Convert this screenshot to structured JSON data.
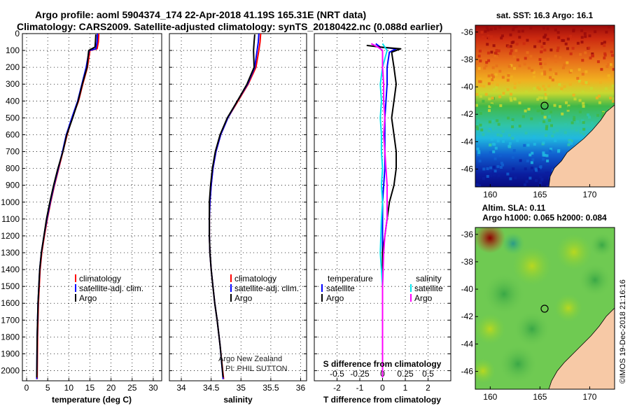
{
  "header": {
    "line1": "Argo profile: aoml 5904374_174 22-Apr-2018 41.19S 165.31E (NRT data)",
    "line2": "Climatology: CARS2009. Satellite-adjusted climatology: synTS_20180422.nc (0.088d earlier)"
  },
  "colors": {
    "climatology": "#ff0000",
    "satellite": "#0000ff",
    "argo": "#000000",
    "s_satellite": "#00e5ee",
    "s_argo": "#ff00ff"
  },
  "chart_data": [
    {
      "type": "line",
      "name": "temperature-profile",
      "xlabel": "temperature (deg C)",
      "xlim": [
        -1,
        32
      ],
      "ylim": [
        2060,
        0
      ],
      "xticks": [
        0,
        5,
        10,
        15,
        20,
        25,
        30
      ],
      "yticks": [
        0,
        100,
        200,
        300,
        400,
        500,
        600,
        700,
        800,
        900,
        1000,
        1100,
        1200,
        1300,
        1400,
        1500,
        1600,
        1700,
        1800,
        1900,
        2000
      ],
      "grid": true,
      "legend_position": "bottom-center",
      "series": [
        {
          "name": "climatology",
          "color": "#ff0000",
          "x": [
            17.1,
            17.0,
            16.7,
            15.0,
            14.4,
            13.3,
            12.3,
            10.8,
            9.6,
            8.6,
            7.6,
            6.6,
            5.7,
            4.9,
            4.2,
            3.6,
            3.2,
            3.0,
            2.8,
            2.6,
            2.5
          ],
          "y": [
            0,
            50,
            90,
            100,
            200,
            300,
            400,
            500,
            600,
            700,
            800,
            900,
            1000,
            1100,
            1200,
            1300,
            1400,
            1500,
            1600,
            1800,
            2050
          ]
        },
        {
          "name": "satellite-adj. clim.",
          "color": "#0000ff",
          "x": [
            16.8,
            16.7,
            16.4,
            14.8,
            14.1,
            13.1,
            12.1,
            10.7,
            9.4,
            8.5,
            7.5,
            6.5,
            5.6,
            4.8,
            4.1,
            3.5,
            3.1,
            2.9,
            2.7,
            2.5,
            2.4
          ],
          "y": [
            0,
            50,
            90,
            100,
            200,
            300,
            400,
            500,
            600,
            700,
            800,
            900,
            1000,
            1100,
            1200,
            1300,
            1400,
            1500,
            1600,
            1800,
            2050
          ]
        },
        {
          "name": "Argo",
          "color": "#000000",
          "x": [
            16.4,
            16.3,
            16.2,
            14.7,
            14.3,
            13.2,
            12.2,
            10.9,
            9.5,
            8.6,
            7.4,
            6.4,
            5.5,
            4.7,
            4.1,
            3.5,
            3.1,
            2.9,
            2.7,
            2.5,
            2.4
          ],
          "y": [
            5,
            50,
            80,
            100,
            200,
            300,
            400,
            500,
            600,
            700,
            800,
            900,
            1000,
            1100,
            1200,
            1300,
            1400,
            1500,
            1600,
            1800,
            2040
          ]
        }
      ],
      "legend": [
        "climatology",
        "satellite-adj. clim.",
        "Argo"
      ]
    },
    {
      "type": "line",
      "name": "salinity-profile",
      "xlabel": "salinity",
      "xlim": [
        33.8,
        36.1
      ],
      "ylim": [
        2060,
        0
      ],
      "xticks": [
        34,
        34.5,
        35,
        35.5,
        36
      ],
      "xticklabels": [
        "34",
        "34.5",
        "35",
        "35.5",
        "36"
      ],
      "grid": true,
      "legend_position": "bottom-center",
      "annotation": [
        "Argo New Zealand",
        "PI: PHIL SUTTON"
      ],
      "series": [
        {
          "name": "climatology",
          "color": "#ff0000",
          "x": [
            35.33,
            35.32,
            35.3,
            35.25,
            35.12,
            34.95,
            34.78,
            34.66,
            34.58,
            34.53,
            34.5,
            34.48,
            34.47,
            34.47,
            34.48,
            34.5,
            34.53,
            34.56,
            34.6,
            34.65,
            34.71
          ],
          "y": [
            0,
            50,
            100,
            200,
            300,
            400,
            500,
            600,
            700,
            800,
            900,
            1000,
            1100,
            1200,
            1300,
            1400,
            1500,
            1600,
            1700,
            1850,
            2050
          ]
        },
        {
          "name": "satellite-adj. clim.",
          "color": "#0000ff",
          "x": [
            35.3,
            35.29,
            35.27,
            35.23,
            35.11,
            34.94,
            34.78,
            34.66,
            34.58,
            34.53,
            34.5,
            34.48,
            34.47,
            34.47,
            34.48,
            34.5,
            34.53,
            34.56,
            34.6,
            34.65,
            34.7
          ],
          "y": [
            0,
            50,
            100,
            200,
            300,
            400,
            500,
            600,
            700,
            800,
            900,
            1000,
            1100,
            1200,
            1300,
            1400,
            1500,
            1600,
            1700,
            1850,
            2050
          ]
        },
        {
          "name": "Argo",
          "color": "#000000",
          "x": [
            35.23,
            35.22,
            35.21,
            35.22,
            35.1,
            34.94,
            34.77,
            34.65,
            34.57,
            34.52,
            34.49,
            34.47,
            34.47,
            34.47,
            34.48,
            34.5,
            34.53,
            34.56,
            34.6,
            34.65,
            34.7
          ],
          "y": [
            5,
            50,
            100,
            200,
            300,
            400,
            500,
            600,
            700,
            800,
            900,
            1000,
            1100,
            1200,
            1300,
            1400,
            1500,
            1600,
            1700,
            1850,
            2040
          ]
        }
      ],
      "legend": [
        "climatology",
        "satellite-adj. clim.",
        "Argo"
      ]
    },
    {
      "type": "line",
      "name": "difference-profile",
      "xlabel": "T difference from climatology",
      "xlabel_top": "S difference from climatology",
      "xlim": [
        -3,
        3
      ],
      "ylim": [
        2060,
        0
      ],
      "xticks": [
        -2,
        -1,
        0,
        1,
        2
      ],
      "top_ticklabels": [
        "-0.5",
        "-0.25",
        "0",
        "0.25",
        "0.5"
      ],
      "grid": true,
      "legend_position": "bottom",
      "series": [
        {
          "name": "temperature satellite",
          "color": "#0000ff",
          "x": [
            -0.3,
            -0.1,
            0.6,
            0.3,
            0.2,
            0.2,
            0.15,
            0.1,
            0.1,
            0.1,
            0.1,
            0.05,
            0.0,
            0.0,
            0.0,
            0.0,
            0.0,
            0.0,
            0.0,
            0.0
          ],
          "y": [
            60,
            80,
            90,
            110,
            200,
            300,
            400,
            500,
            600,
            700,
            800,
            900,
            1000,
            1100,
            1200,
            1300,
            1500,
            1700,
            1900,
            2040
          ]
        },
        {
          "name": "temperature Argo",
          "color": "#000000",
          "x": [
            -0.7,
            -0.1,
            0.8,
            0.4,
            0.5,
            0.6,
            0.5,
            0.4,
            0.5,
            0.6,
            0.6,
            0.5,
            0.3,
            0.2,
            0.1,
            0.0,
            0.0,
            0.0,
            0.0,
            0.0
          ],
          "y": [
            70,
            80,
            90,
            110,
            200,
            300,
            400,
            500,
            600,
            700,
            800,
            900,
            1000,
            1100,
            1200,
            1300,
            1500,
            1700,
            1900,
            2040
          ]
        },
        {
          "name": "salinity satellite",
          "color": "#00e5ee",
          "x": [
            0.0,
            0.1,
            0.2,
            0.0,
            -0.1,
            -0.05,
            -0.1,
            -0.05,
            -0.05,
            0.0,
            -0.05,
            0.0,
            -0.05,
            -0.1,
            0.0,
            0.0,
            0.0,
            0.0,
            0.0
          ],
          "y": [
            60,
            80,
            100,
            200,
            300,
            400,
            500,
            600,
            700,
            800,
            900,
            1000,
            1100,
            1300,
            1500,
            1700,
            1800,
            1900,
            2040
          ]
        },
        {
          "name": "salinity Argo",
          "color": "#ff00ff",
          "x": [
            -0.5,
            -0.2,
            0.0,
            0.0,
            0.05,
            0.05,
            0.1,
            0.05,
            0.1,
            0.15,
            0.2,
            0.2,
            0.2,
            0.1,
            0.05,
            0.0,
            0.0,
            0.0
          ],
          "y": [
            60,
            80,
            100,
            200,
            300,
            400,
            500,
            600,
            700,
            800,
            900,
            1000,
            1100,
            1200,
            1300,
            1500,
            1800,
            2040
          ]
        }
      ],
      "legend": {
        "temperature_title": "temperature",
        "salinity_title": "salinity",
        "labels": [
          "satellite",
          "Argo",
          "satellite",
          "Argo"
        ]
      }
    },
    {
      "type": "heatmap",
      "name": "sst-map",
      "title": "sat. SST: 16.3 Argo: 16.1",
      "xlim": [
        158.5,
        172.5
      ],
      "ylim": [
        -47.3,
        -35.5
      ],
      "xticks": [
        160,
        165,
        170
      ],
      "yticks": [
        -36,
        -38,
        -40,
        -42,
        -44,
        -46
      ],
      "marker": {
        "lon": 165.31,
        "lat": -41.19
      }
    },
    {
      "type": "heatmap",
      "name": "sla-map",
      "title_line1": "Altim. SLA: 0.11",
      "title_line2": "Argo h1000: 0.065 h2000: 0.084",
      "xlim": [
        158.5,
        172.5
      ],
      "ylim": [
        -47.3,
        -35.5
      ],
      "xticks": [
        160,
        165,
        170
      ],
      "yticks": [
        -36,
        -38,
        -40,
        -42,
        -44,
        -46
      ],
      "marker": {
        "lon": 165.31,
        "lat": -41.19
      }
    }
  ],
  "footer": {
    "stamp": "©IMOS 19-Dec-2018 21:16:16"
  }
}
